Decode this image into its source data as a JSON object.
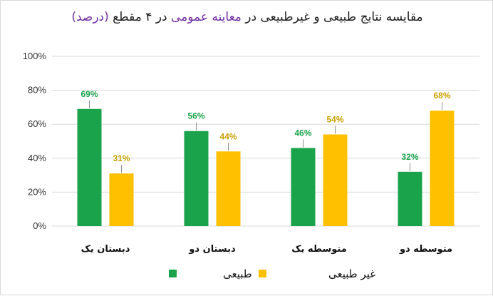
{
  "colors": {
    "title_dark": "#1f1f1f",
    "title_purple": "#7030a0",
    "grid": "#d9d9d9",
    "leader": "#8c8c8c"
  },
  "chart_data": {
    "type": "bar",
    "title_parts": [
      {
        "text": "مقایسه نتایج طبیعی و غیرطبیعی در ",
        "color": "#1f1f1f"
      },
      {
        "text": "معاینه عمومی",
        "color": "#7030a0"
      },
      {
        "text": " در ۴ مقطع ",
        "color": "#1f1f1f"
      },
      {
        "text": "(درصد)",
        "color": "#7030a0"
      }
    ],
    "categories": [
      "متوسطه دو",
      "متوسطه یک",
      "دبستان دو",
      "دبستان یک"
    ],
    "series": [
      {
        "name": "طبیعی",
        "color": "#1aa34a",
        "label_color": "#1aa34a",
        "values": [
          32,
          46,
          56,
          69
        ]
      },
      {
        "name": "غیر طبیعی",
        "color": "#ffc000",
        "label_color": "#c9a000",
        "values": [
          68,
          54,
          44,
          31
        ]
      }
    ],
    "ylim": [
      0,
      100
    ],
    "yticks": [
      0,
      20,
      40,
      60,
      80,
      100
    ],
    "ytick_suffix": "%",
    "data_label_suffix": "%",
    "grid": true,
    "legend_position": "bottom"
  }
}
